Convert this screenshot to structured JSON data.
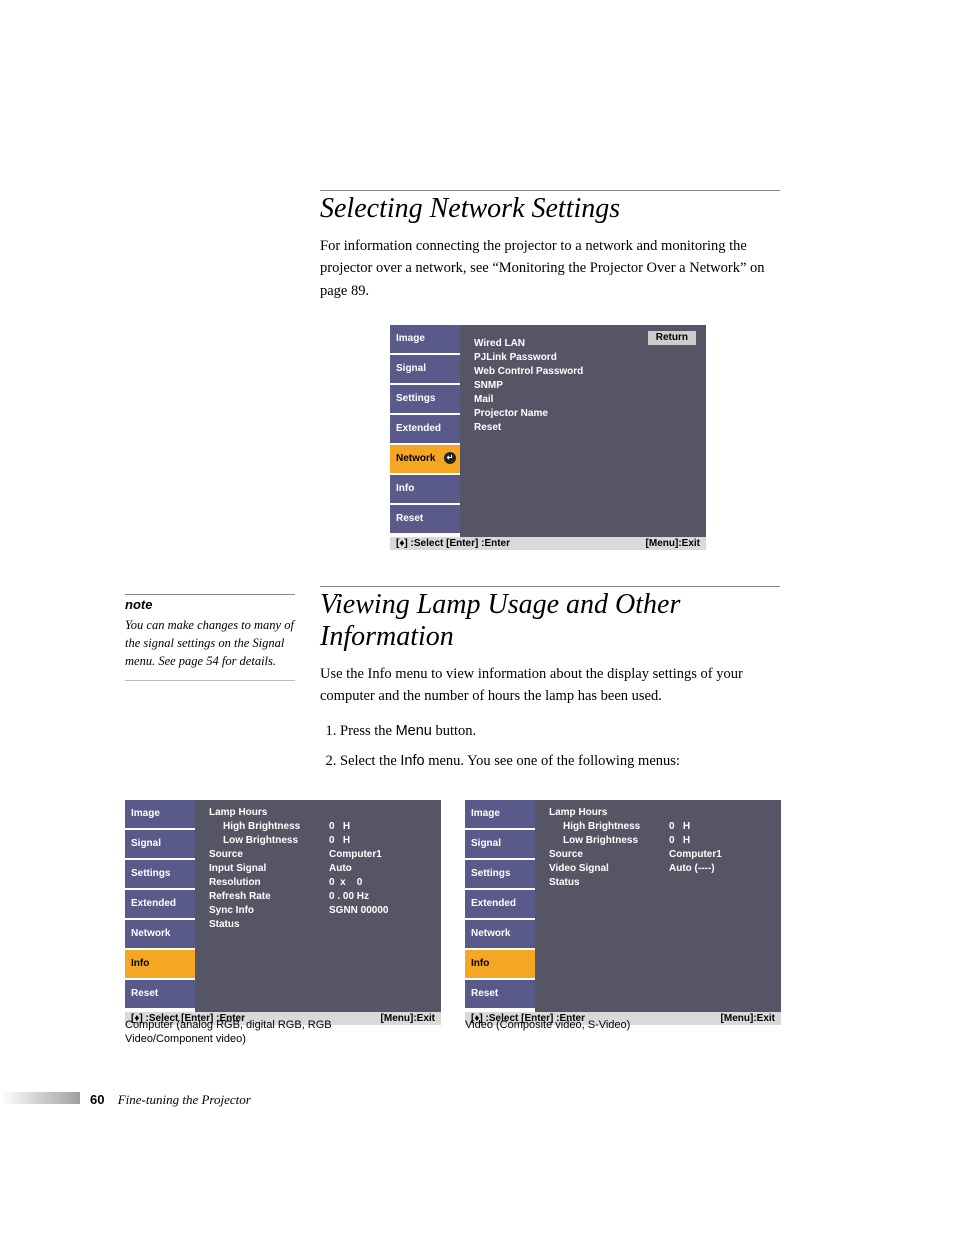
{
  "page": {
    "number": "60",
    "chapter": "Fine-tuning the Projector"
  },
  "section1": {
    "heading": "Selecting Network Settings",
    "para": "For information connecting the projector to a network and monitoring the projector over a network, see “Monitoring the Projector Over a Network” on page 89."
  },
  "section2": {
    "heading": "Viewing Lamp Usage and Other Information",
    "para": "Use the Info menu to view information about the display settings of your computer and the number of hours the lamp has been used.",
    "step1a": "Press the ",
    "step1b": "Menu",
    "step1c": " button.",
    "step2a": "Select the ",
    "step2b": "Info",
    "step2c": " menu. You see one of the following menus:"
  },
  "note": {
    "label": "note",
    "body": "You can make changes to many of the signal settings on the Signal menu. See page 54 for details."
  },
  "osd_common": {
    "tabs": [
      "Image",
      "Signal",
      "Settings",
      "Extended",
      "Network",
      "Info",
      "Reset"
    ],
    "return": "Return",
    "status_left": "[♦] :Select  [Enter] :Enter",
    "status_right": "[Menu]:Exit",
    "colors": {
      "tab_bg": "#5a5a8a",
      "tab_active_bg": "#f5a623",
      "panel_bg": "#555566",
      "status_bg": "#d9d9d9",
      "text": "#ffffff",
      "dark_text": "#000000"
    }
  },
  "osd1": {
    "active_tab_index": 4,
    "show_return": true,
    "show_enter_dot": true,
    "items": [
      {
        "label": "Wired LAN"
      },
      {
        "label": "PJLink Password"
      },
      {
        "label": "Web Control Password"
      },
      {
        "label": "SNMP"
      },
      {
        "label": "Mail"
      },
      {
        "label": "Projector Name"
      },
      {
        "label": "Reset"
      }
    ]
  },
  "osd2": {
    "active_tab_index": 5,
    "caption": "Computer (analog RGB, digital RGB, RGB Video/Component video)",
    "rows": [
      {
        "label": "Lamp Hours",
        "value": ""
      },
      {
        "label": "High Brightness",
        "value": "0   H",
        "indent": true
      },
      {
        "label": "Low Brightness",
        "value": "0   H",
        "indent": true
      },
      {
        "label": "Source",
        "value": "Computer1"
      },
      {
        "label": "Input Signal",
        "value": "Auto"
      },
      {
        "label": "Resolution",
        "value": "0  x    0"
      },
      {
        "label": "Refresh Rate",
        "value": "0 . 00 Hz"
      },
      {
        "label": "Sync Info",
        "value": "SGNN 00000"
      },
      {
        "label": "Status",
        "value": ""
      }
    ]
  },
  "osd3": {
    "active_tab_index": 5,
    "caption": "Video (Composite video, S-Video)",
    "rows": [
      {
        "label": "Lamp Hours",
        "value": ""
      },
      {
        "label": "High Brightness",
        "value": "0   H",
        "indent": true
      },
      {
        "label": "Low Brightness",
        "value": "0   H",
        "indent": true
      },
      {
        "label": "Source",
        "value": "Computer1"
      },
      {
        "label": "Video Signal",
        "value": "Auto (----)"
      },
      {
        "label": "Status",
        "value": ""
      }
    ]
  }
}
